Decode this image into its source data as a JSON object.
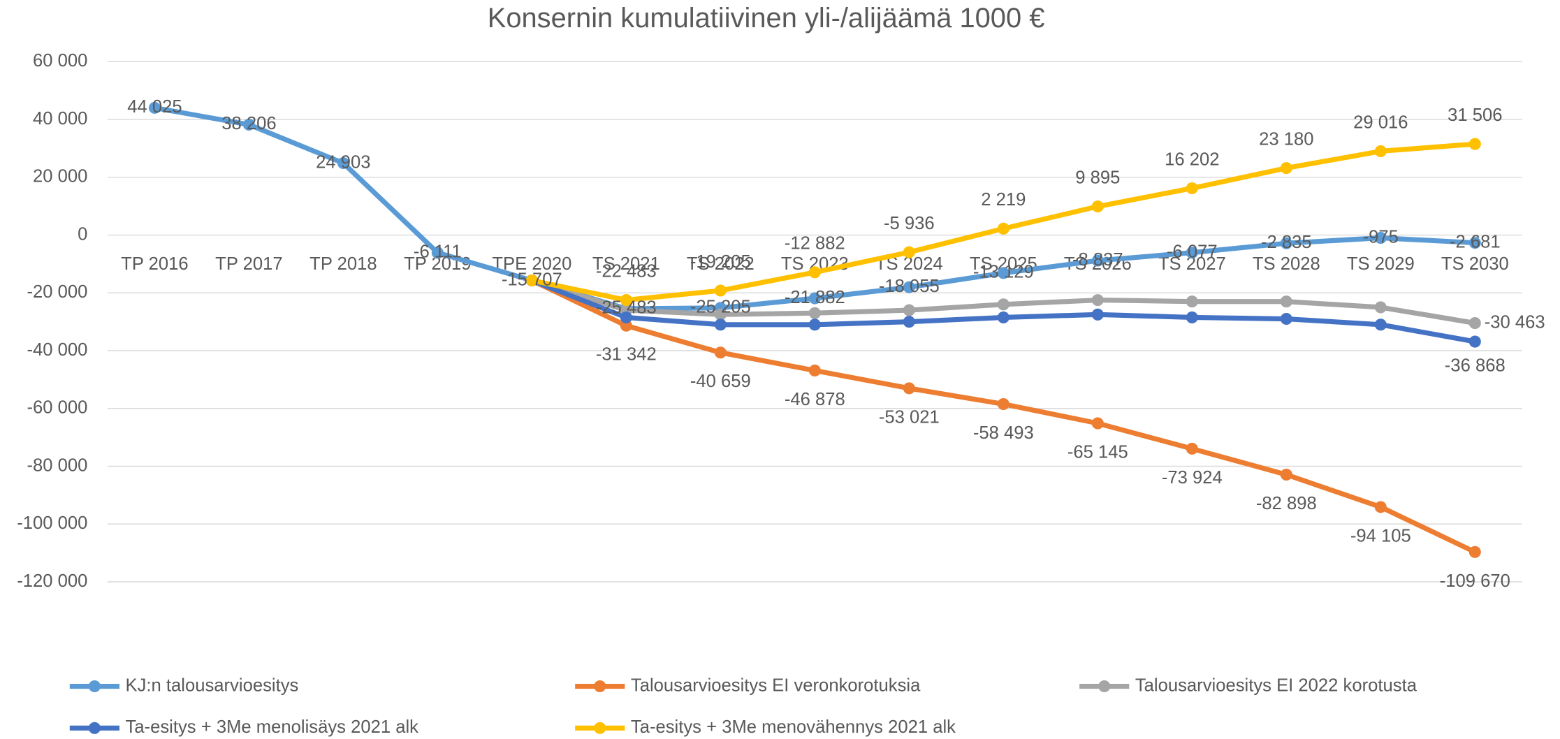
{
  "chart_data": {
    "type": "line",
    "title": "Konsernin kumulatiivinen yli-/alijäämä 1000 €",
    "categories": [
      "TP 2016",
      "TP 2017",
      "TP 2018",
      "TP 2019",
      "TPE 2020",
      "TS 2021",
      "TS 2022",
      "TS 2023",
      "TS 2024",
      "TS 2025",
      "TS 2026",
      "TS 2027",
      "TS 2028",
      "TS 2029",
      "TS 2030"
    ],
    "ylim": [
      -120000,
      60000
    ],
    "yticks": [
      {
        "value": 60000,
        "label": "60 000"
      },
      {
        "value": 40000,
        "label": "40 000"
      },
      {
        "value": 20000,
        "label": "20 000"
      },
      0,
      {
        "value": -20000,
        "label": "-20 000"
      },
      {
        "value": -40000,
        "label": "-40 000"
      },
      {
        "value": -60000,
        "label": "-60 000"
      },
      {
        "value": -80000,
        "label": "-80 000"
      },
      {
        "value": -100000,
        "label": "-100 000"
      },
      {
        "value": -120000,
        "label": "-120 000"
      }
    ],
    "grid": true,
    "legend": "bottom",
    "series": [
      {
        "name": "KJ:n talousarvioesitys",
        "color": "#5B9BD5",
        "values": [
          44025,
          38206,
          24903,
          -6111,
          -15707,
          -25483,
          -25205,
          -21882,
          -18055,
          -13129,
          -8837,
          -6077,
          -2835,
          -975,
          -2681
        ],
        "value_labels": [
          "44 025",
          "38 206",
          "24 903",
          "-6 111",
          "-15 707",
          "-25 483",
          "-25 205",
          "-21 882",
          "-18 055",
          "-13 129",
          "-8 837",
          "-6 077",
          "-2 835",
          "-975",
          "-2 681"
        ]
      },
      {
        "name": "Talousarvioesitys EI veronkorotuksia",
        "color": "#ED7D31",
        "values": [
          null,
          null,
          null,
          null,
          -15707,
          -31342,
          -40659,
          -46878,
          -53021,
          -58493,
          -65145,
          -73924,
          -82898,
          -94105,
          -109670
        ],
        "value_labels": [
          null,
          null,
          null,
          null,
          null,
          "-31 342",
          "-40 659",
          "-46 878",
          "-53 021",
          "-58 493",
          "-65 145",
          "-73 924",
          "-82 898",
          "-94 105",
          "-109 670"
        ]
      },
      {
        "name": "Talousarvioesitys EI 2022 korotusta",
        "color": "#A5A5A5",
        "values": [
          null,
          null,
          null,
          null,
          -15707,
          -26000,
          -27500,
          -27000,
          -26000,
          -24000,
          -22500,
          -23000,
          -23000,
          -25000,
          -30463
        ],
        "value_labels": [
          null,
          null,
          null,
          null,
          null,
          null,
          null,
          null,
          null,
          null,
          null,
          null,
          null,
          null,
          "-30 463"
        ]
      },
      {
        "name": "Ta-esitys +  3Me menolisäys 2021 alk",
        "color": "#4472C4",
        "values": [
          null,
          null,
          null,
          null,
          -15707,
          -28500,
          -31000,
          -31000,
          -30000,
          -28500,
          -27500,
          -28500,
          -29000,
          -31000,
          -36868
        ],
        "value_labels": [
          null,
          null,
          null,
          null,
          null,
          null,
          null,
          null,
          null,
          null,
          null,
          null,
          null,
          null,
          "-36 868"
        ]
      },
      {
        "name": "Ta-esitys + 3Me menovähennys 2021 alk",
        "color": "#FFC000",
        "values": [
          null,
          null,
          null,
          null,
          -15707,
          -22483,
          -19205,
          -12882,
          -5936,
          2219,
          9895,
          16202,
          23180,
          29016,
          31506
        ],
        "value_labels": [
          null,
          null,
          null,
          null,
          null,
          "-22 483",
          "-19 205",
          "-12 882",
          "-5 936",
          "2 219",
          "9 895",
          "16 202",
          "23 180",
          "29 016",
          "31 506"
        ]
      }
    ]
  }
}
